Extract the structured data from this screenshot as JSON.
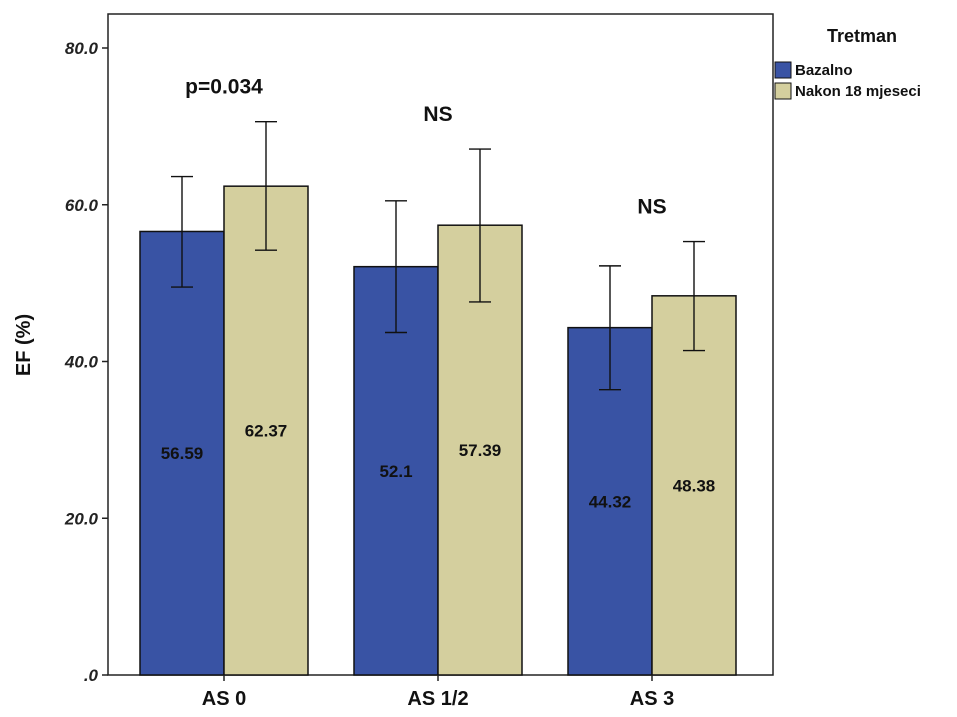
{
  "chart_data": {
    "type": "bar",
    "ylabel": "EF (%)",
    "xlabel": "",
    "ylim": [
      0,
      80
    ],
    "y_ticks": [
      {
        "value": 0,
        "label": ".0"
      },
      {
        "value": 20,
        "label": "20.0"
      },
      {
        "value": 40,
        "label": "40.0"
      },
      {
        "value": 60,
        "label": "60.0"
      },
      {
        "value": 80,
        "label": "80.0"
      }
    ],
    "categories": [
      "AS 0",
      "AS 1/2",
      "AS 3"
    ],
    "legend": {
      "title": "Tretman",
      "position": "right"
    },
    "series": [
      {
        "name": "Bazalno",
        "color": "#3953a4",
        "values": [
          56.59,
          52.1,
          44.32
        ],
        "value_labels": [
          "56.59",
          "52.1",
          "44.32"
        ],
        "error_low": [
          49.5,
          43.7,
          36.4
        ],
        "error_high": [
          63.6,
          60.5,
          52.2
        ]
      },
      {
        "name": "Nakon 18 mjeseci",
        "color": "#d4cf9e",
        "values": [
          62.37,
          57.39,
          48.38
        ],
        "value_labels": [
          "62.37",
          "57.39",
          "48.38"
        ],
        "error_low": [
          54.2,
          47.6,
          41.4
        ],
        "error_high": [
          70.6,
          67.1,
          55.3
        ]
      }
    ],
    "annotations": [
      "p=0.034",
      "NS",
      "NS"
    ],
    "grid": false
  }
}
